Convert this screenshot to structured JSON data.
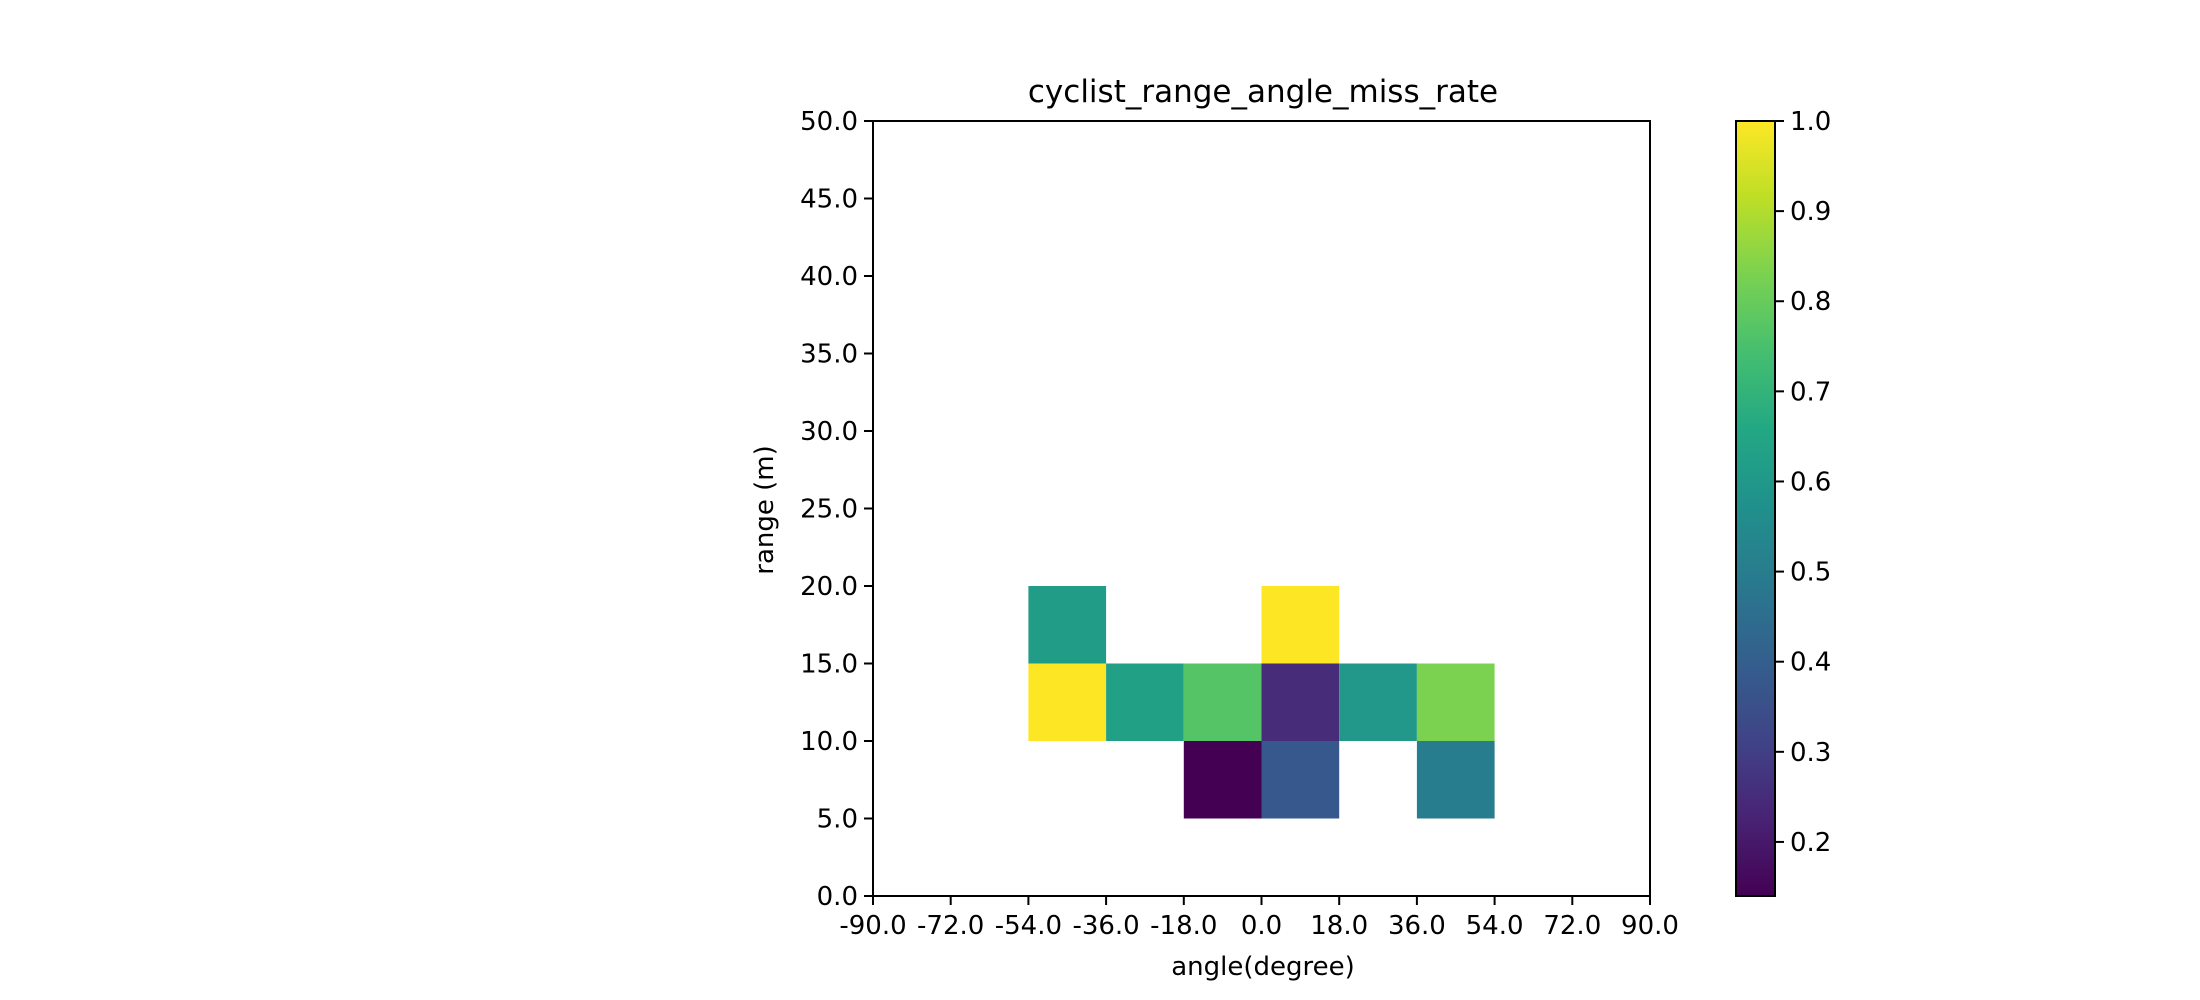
{
  "chart_data": {
    "type": "heatmap",
    "title": "cyclist_range_angle_miss_rate",
    "xlabel": "angle(degree)",
    "ylabel": "range (m)",
    "xlim": [
      -90,
      90
    ],
    "ylim": [
      0,
      50
    ],
    "x_ticks": [
      "-90.0",
      "-72.0",
      "-54.0",
      "-36.0",
      "-18.0",
      "0.0",
      "18.0",
      "36.0",
      "54.0",
      "72.0",
      "90.0"
    ],
    "y_ticks": [
      "0.0",
      "5.0",
      "10.0",
      "15.0",
      "20.0",
      "25.0",
      "30.0",
      "35.0",
      "40.0",
      "45.0",
      "50.0"
    ],
    "x_bin_edges": [
      -90,
      -72,
      -54,
      -36,
      -18,
      0,
      18,
      36,
      54,
      72,
      90
    ],
    "y_bin_edges": [
      0,
      5,
      10,
      15,
      20,
      25,
      30,
      35,
      40,
      45,
      50
    ],
    "cells": [
      {
        "x_range": [
          -54,
          -36
        ],
        "y_range": [
          15,
          20
        ],
        "value": 0.62
      },
      {
        "x_range": [
          0,
          18
        ],
        "y_range": [
          15,
          20
        ],
        "value": 1.0
      },
      {
        "x_range": [
          -54,
          -36
        ],
        "y_range": [
          10,
          15
        ],
        "value": 1.0
      },
      {
        "x_range": [
          -36,
          -18
        ],
        "y_range": [
          10,
          15
        ],
        "value": 0.63
      },
      {
        "x_range": [
          -18,
          0
        ],
        "y_range": [
          10,
          15
        ],
        "value": 0.77
      },
      {
        "x_range": [
          0,
          18
        ],
        "y_range": [
          10,
          15
        ],
        "value": 0.25
      },
      {
        "x_range": [
          18,
          36
        ],
        "y_range": [
          10,
          15
        ],
        "value": 0.6
      },
      {
        "x_range": [
          36,
          54
        ],
        "y_range": [
          10,
          15
        ],
        "value": 0.83
      },
      {
        "x_range": [
          -18,
          0
        ],
        "y_range": [
          5,
          10
        ],
        "value": 0.14
      },
      {
        "x_range": [
          0,
          18
        ],
        "y_range": [
          5,
          10
        ],
        "value": 0.38
      },
      {
        "x_range": [
          36,
          54
        ],
        "y_range": [
          5,
          10
        ],
        "value": 0.5
      }
    ],
    "colorbar": {
      "colormap": "viridis",
      "vmin": 0.14,
      "vmax": 1.0,
      "ticks": [
        0.2,
        0.3,
        0.4,
        0.5,
        0.6,
        0.7,
        0.8,
        0.9,
        1.0
      ],
      "tick_labels": [
        "0.2",
        "0.3",
        "0.4",
        "0.5",
        "0.6",
        "0.7",
        "0.8",
        "0.9",
        "1.0"
      ]
    },
    "grid": false
  }
}
